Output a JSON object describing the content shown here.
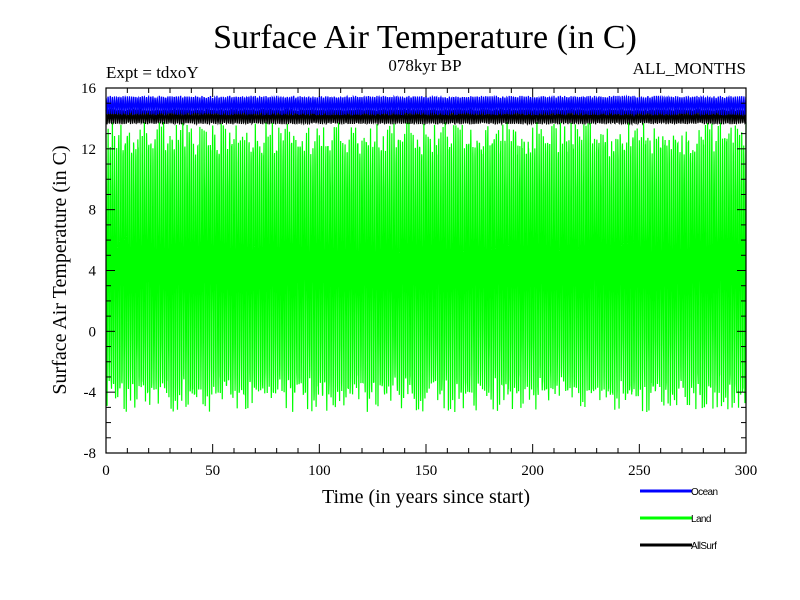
{
  "chart_data": {
    "type": "line",
    "title": "Surface Air Temperature (in C)",
    "subtitle_left": "Expt = tdxoY",
    "subtitle_center": "078kyr BP",
    "subtitle_right": "ALL_MONTHS",
    "xlabel": "Time (in years since start)",
    "ylabel": "Surface Air Temperature (in C)",
    "xlim": [
      0,
      300
    ],
    "ylim": [
      -8,
      16
    ],
    "x_ticks": [
      0,
      50,
      100,
      150,
      200,
      250,
      300
    ],
    "y_ticks": [
      -8,
      -4,
      0,
      4,
      8,
      12,
      16
    ],
    "grid": false,
    "legend_position": "bottom-right",
    "series": [
      {
        "name": "Ocean",
        "color": "#0000ff",
        "min": 14.2,
        "max": 15.5,
        "mean": 14.8
      },
      {
        "name": "Land",
        "color": "#00ff00",
        "min": -5.5,
        "max": 14.0,
        "mean": 4.3
      },
      {
        "name": "AllSurf",
        "color": "#000000",
        "min": 13.6,
        "max": 14.6,
        "mean": 14.1
      }
    ]
  }
}
